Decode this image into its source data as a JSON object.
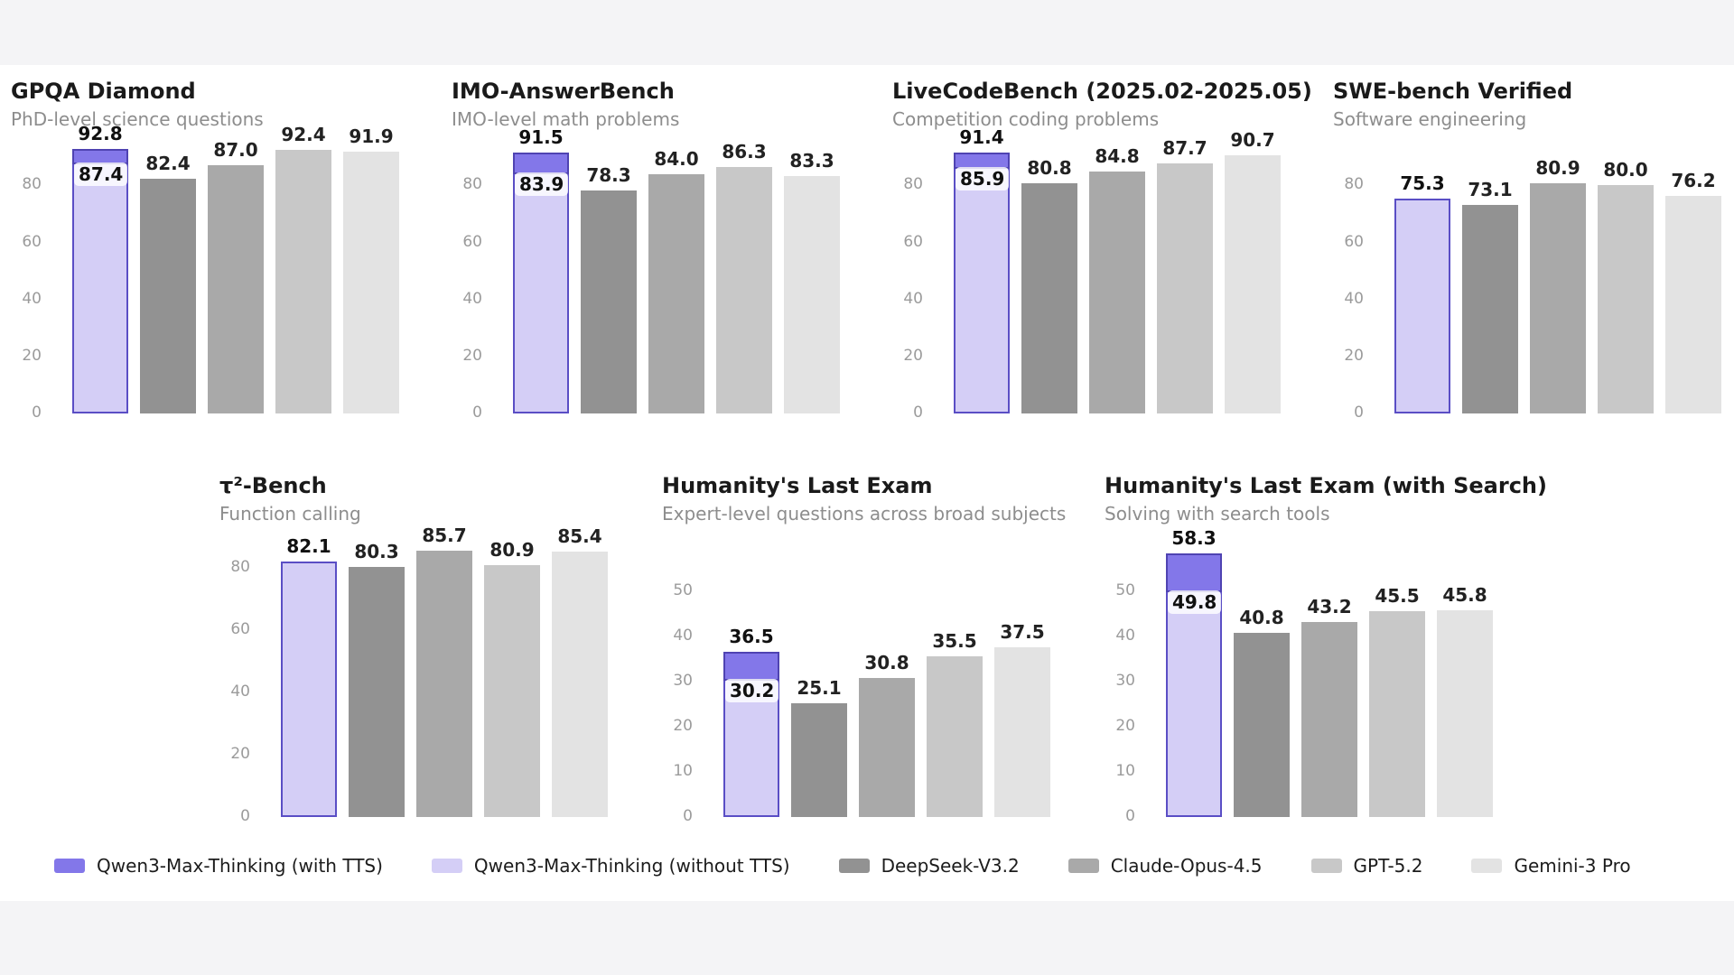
{
  "palette": {
    "qwen_tts": {
      "fill": "#8377e9",
      "border": "#4f43b2"
    },
    "qwen": {
      "fill": "#d4cef6",
      "border": "#5a4ec5"
    },
    "deepseek": {
      "fill": "#929292"
    },
    "claude": {
      "fill": "#a9a9a9"
    },
    "gpt": {
      "fill": "#c8c8c8"
    },
    "gemini": {
      "fill": "#e3e3e3"
    }
  },
  "legend": {
    "items": [
      {
        "label": "Qwen3-Max-Thinking (with TTS)",
        "palette": "qwen_tts"
      },
      {
        "label": "Qwen3-Max-Thinking (without TTS)",
        "palette": "qwen"
      },
      {
        "label": "DeepSeek-V3.2",
        "palette": "deepseek"
      },
      {
        "label": "Claude-Opus-4.5",
        "palette": "claude"
      },
      {
        "label": "GPT-5.2",
        "palette": "gpt"
      },
      {
        "label": "Gemini-3 Pro",
        "palette": "gemini"
      }
    ]
  },
  "chart_data": [
    {
      "type": "bar",
      "row": 1,
      "title": "GPQA Diamond",
      "subtitle": "PhD-level science questions",
      "ylim": [
        0,
        95
      ],
      "yticks": [
        0,
        20,
        40,
        60,
        80
      ],
      "grid": false,
      "bars": [
        {
          "model": "Qwen3-Max-Thinking",
          "palette": "qwen",
          "value": 87.4,
          "label": "87.4",
          "tts_value": 92.8,
          "tts_label": "92.8"
        },
        {
          "model": "DeepSeek-V3.2",
          "palette": "deepseek",
          "value": 82.4,
          "label": "82.4"
        },
        {
          "model": "Claude-Opus-4.5",
          "palette": "claude",
          "value": 87.0,
          "label": "87.0"
        },
        {
          "model": "GPT-5.2",
          "palette": "gpt",
          "value": 92.4,
          "label": "92.4"
        },
        {
          "model": "Gemini-3 Pro",
          "palette": "gemini",
          "value": 91.9,
          "label": "91.9"
        }
      ]
    },
    {
      "type": "bar",
      "row": 1,
      "title": "IMO-AnswerBench",
      "subtitle": "IMO-level math problems",
      "ylim": [
        0,
        95
      ],
      "yticks": [
        0,
        20,
        40,
        60,
        80
      ],
      "grid": false,
      "bars": [
        {
          "model": "Qwen3-Max-Thinking",
          "palette": "qwen",
          "value": 83.9,
          "label": "83.9",
          "tts_value": 91.5,
          "tts_label": "91.5"
        },
        {
          "model": "DeepSeek-V3.2",
          "palette": "deepseek",
          "value": 78.3,
          "label": "78.3"
        },
        {
          "model": "Claude-Opus-4.5",
          "palette": "claude",
          "value": 84.0,
          "label": "84.0"
        },
        {
          "model": "GPT-5.2",
          "palette": "gpt",
          "value": 86.3,
          "label": "86.3"
        },
        {
          "model": "Gemini-3 Pro",
          "palette": "gemini",
          "value": 83.3,
          "label": "83.3"
        }
      ]
    },
    {
      "type": "bar",
      "row": 1,
      "title": "LiveCodeBench (2025.02-2025.05)",
      "subtitle": "Competition coding problems",
      "ylim": [
        0,
        95
      ],
      "yticks": [
        0,
        20,
        40,
        60,
        80
      ],
      "grid": false,
      "bars": [
        {
          "model": "Qwen3-Max-Thinking",
          "palette": "qwen",
          "value": 85.9,
          "label": "85.9",
          "tts_value": 91.4,
          "tts_label": "91.4"
        },
        {
          "model": "DeepSeek-V3.2",
          "palette": "deepseek",
          "value": 80.8,
          "label": "80.8"
        },
        {
          "model": "Claude-Opus-4.5",
          "palette": "claude",
          "value": 84.8,
          "label": "84.8"
        },
        {
          "model": "GPT-5.2",
          "palette": "gpt",
          "value": 87.7,
          "label": "87.7"
        },
        {
          "model": "Gemini-3 Pro",
          "palette": "gemini",
          "value": 90.7,
          "label": "90.7"
        }
      ]
    },
    {
      "type": "bar",
      "row": 1,
      "title": "SWE-bench Verified",
      "subtitle": "Software engineering",
      "ylim": [
        0,
        95
      ],
      "yticks": [
        0,
        20,
        40,
        60,
        80
      ],
      "grid": false,
      "bars": [
        {
          "model": "Qwen3-Max-Thinking",
          "palette": "qwen",
          "value": 75.3,
          "label": "75.3"
        },
        {
          "model": "DeepSeek-V3.2",
          "palette": "deepseek",
          "value": 73.1,
          "label": "73.1"
        },
        {
          "model": "Claude-Opus-4.5",
          "palette": "claude",
          "value": 80.9,
          "label": "80.9"
        },
        {
          "model": "GPT-5.2",
          "palette": "gpt",
          "value": 80.0,
          "label": "80.0"
        },
        {
          "model": "Gemini-3 Pro",
          "palette": "gemini",
          "value": 76.2,
          "label": "76.2"
        }
      ]
    },
    {
      "type": "bar",
      "row": 2,
      "title": "τ²-Bench",
      "subtitle": "Function calling",
      "ylim": [
        0,
        90
      ],
      "yticks": [
        0,
        20,
        40,
        60,
        80
      ],
      "grid": false,
      "bars": [
        {
          "model": "Qwen3-Max-Thinking",
          "palette": "qwen",
          "value": 82.1,
          "label": "82.1"
        },
        {
          "model": "DeepSeek-V3.2",
          "palette": "deepseek",
          "value": 80.3,
          "label": "80.3"
        },
        {
          "model": "Claude-Opus-4.5",
          "palette": "claude",
          "value": 85.7,
          "label": "85.7"
        },
        {
          "model": "GPT-5.2",
          "palette": "gpt",
          "value": 80.9,
          "label": "80.9"
        },
        {
          "model": "Gemini-3 Pro",
          "palette": "gemini",
          "value": 85.4,
          "label": "85.4"
        }
      ]
    },
    {
      "type": "bar",
      "row": 2,
      "title": "Humanity's Last Exam",
      "subtitle": "Expert-level questions across broad subjects",
      "ylim": [
        0,
        62
      ],
      "yticks": [
        0,
        10,
        20,
        30,
        40,
        50
      ],
      "grid": false,
      "bars": [
        {
          "model": "Qwen3-Max-Thinking",
          "palette": "qwen",
          "value": 30.2,
          "label": "30.2",
          "tts_value": 36.5,
          "tts_label": "36.5"
        },
        {
          "model": "DeepSeek-V3.2",
          "palette": "deepseek",
          "value": 25.1,
          "label": "25.1"
        },
        {
          "model": "Claude-Opus-4.5",
          "palette": "claude",
          "value": 30.8,
          "label": "30.8"
        },
        {
          "model": "GPT-5.2",
          "palette": "gpt",
          "value": 35.5,
          "label": "35.5"
        },
        {
          "model": "Gemini-3 Pro",
          "palette": "gemini",
          "value": 37.5,
          "label": "37.5"
        }
      ]
    },
    {
      "type": "bar",
      "row": 2,
      "title": "Humanity's Last Exam (with Search)",
      "subtitle": "Solving with search tools",
      "ylim": [
        0,
        62
      ],
      "yticks": [
        0,
        10,
        20,
        30,
        40,
        50
      ],
      "grid": false,
      "bars": [
        {
          "model": "Qwen3-Max-Thinking",
          "palette": "qwen",
          "value": 49.8,
          "label": "49.8",
          "tts_value": 58.3,
          "tts_label": "58.3"
        },
        {
          "model": "DeepSeek-V3.2",
          "palette": "deepseek",
          "value": 40.8,
          "label": "40.8"
        },
        {
          "model": "Claude-Opus-4.5",
          "palette": "claude",
          "value": 43.2,
          "label": "43.2"
        },
        {
          "model": "GPT-5.2",
          "palette": "gpt",
          "value": 45.5,
          "label": "45.5"
        },
        {
          "model": "Gemini-3 Pro",
          "palette": "gemini",
          "value": 45.8,
          "label": "45.8"
        }
      ]
    }
  ]
}
